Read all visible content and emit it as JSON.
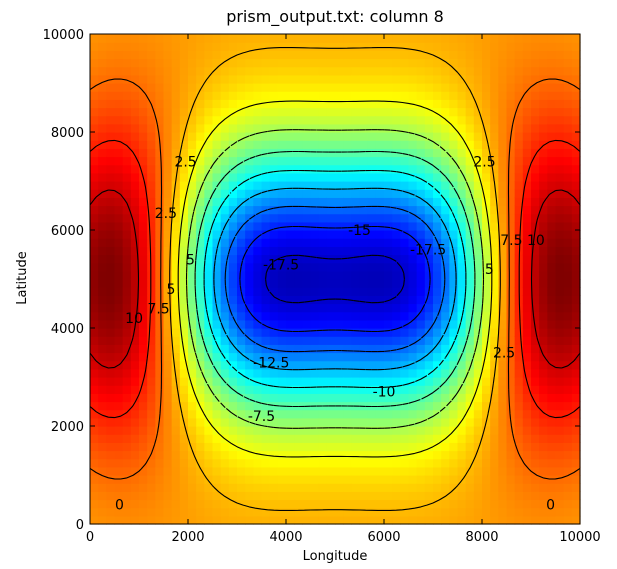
{
  "chart_data": {
    "type": "heatmap",
    "title": "prism_output.txt: column 8",
    "xlabel": "Longitude",
    "ylabel": "Latitude",
    "xlim": [
      0,
      10000
    ],
    "ylim": [
      0,
      10000
    ],
    "xticks": [
      0,
      2000,
      4000,
      6000,
      8000,
      10000
    ],
    "yticks": [
      0,
      2000,
      4000,
      6000,
      8000,
      10000
    ],
    "colormap": "jet",
    "value_range": [
      -20,
      12.5
    ],
    "grid": false,
    "legend": "none",
    "field": {
      "description_of_sources": [
        {
          "kind": "max",
          "x": 700,
          "y": 5000,
          "value": 12.5
        },
        {
          "kind": "max",
          "x": 9300,
          "y": 5000,
          "value": 12.5
        },
        {
          "kind": "min",
          "x": 3400,
          "y": 5000,
          "value": -19
        },
        {
          "kind": "min",
          "x": 6600,
          "y": 5000,
          "value": -19
        }
      ]
    },
    "contour_levels": [
      -17.5,
      -15,
      -12.5,
      -10,
      -7.5,
      -5,
      -2.5,
      0,
      2.5,
      5,
      7.5,
      10
    ],
    "contour_labels": [
      {
        "text": "0",
        "x": 600,
        "y": 400
      },
      {
        "text": "0",
        "x": 9400,
        "y": 400
      },
      {
        "text": "2.5",
        "x": 1950,
        "y": 7400
      },
      {
        "text": "2.5",
        "x": 8050,
        "y": 7400
      },
      {
        "text": "2.5",
        "x": 1550,
        "y": 6350
      },
      {
        "text": "2.5",
        "x": 8450,
        "y": 3500
      },
      {
        "text": "5",
        "x": 2050,
        "y": 5400
      },
      {
        "text": "5",
        "x": 8150,
        "y": 5200
      },
      {
        "text": "7.5",
        "x": 1400,
        "y": 4400
      },
      {
        "text": "7.5",
        "x": 8600,
        "y": 5800
      },
      {
        "text": "5",
        "x": 1650,
        "y": 4800
      },
      {
        "text": "10",
        "x": 900,
        "y": 4200
      },
      {
        "text": "10",
        "x": 9100,
        "y": 5800
      },
      {
        "text": "-17.5",
        "x": 3900,
        "y": 5300
      },
      {
        "text": "-17.5",
        "x": 6900,
        "y": 5600
      },
      {
        "text": "-15",
        "x": 5500,
        "y": 6000
      },
      {
        "text": "-12.5",
        "x": 3700,
        "y": 3300
      },
      {
        "text": "-10",
        "x": 6000,
        "y": 2700
      },
      {
        "text": "-7.5",
        "x": 3500,
        "y": 2200
      }
    ]
  }
}
